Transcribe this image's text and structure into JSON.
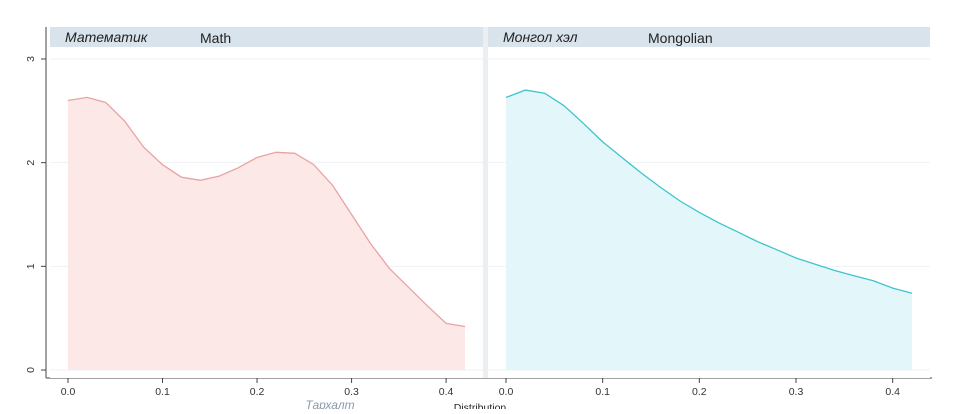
{
  "chart_data": {
    "type": "area",
    "ylim": [
      0,
      3
    ],
    "xlim": [
      0,
      0.42
    ],
    "yticks": [
      0,
      1,
      2,
      3
    ],
    "xticks": [
      0.0,
      0.1,
      0.2,
      0.3,
      0.4
    ],
    "xtick_labels": [
      "0.0",
      "0.1",
      "0.2",
      "0.3",
      "0.4"
    ],
    "ytick_labels": [
      "0",
      "1",
      "2",
      "3"
    ],
    "xlabel_mn": "Тархалт",
    "xlabel_en": "Distribution",
    "grid": true,
    "panels": [
      {
        "name_mn": "Математик",
        "name_en": "Math",
        "color": "#e8a3a3",
        "fill": "#fde8e8",
        "x": [
          0.0,
          0.02,
          0.04,
          0.06,
          0.08,
          0.1,
          0.12,
          0.14,
          0.16,
          0.18,
          0.2,
          0.22,
          0.24,
          0.26,
          0.28,
          0.3,
          0.32,
          0.34,
          0.36,
          0.38,
          0.4,
          0.42
        ],
        "y": [
          2.6,
          2.63,
          2.58,
          2.4,
          2.15,
          1.98,
          1.86,
          1.83,
          1.87,
          1.95,
          2.05,
          2.1,
          2.09,
          1.98,
          1.78,
          1.5,
          1.22,
          0.98,
          0.8,
          0.62,
          0.45,
          0.42
        ]
      },
      {
        "name_mn": "Монгол хэл",
        "name_en": "Mongolian",
        "color": "#3fc4cc",
        "fill": "#e3f7fa",
        "x": [
          0.0,
          0.02,
          0.04,
          0.06,
          0.08,
          0.1,
          0.12,
          0.14,
          0.16,
          0.18,
          0.2,
          0.22,
          0.24,
          0.26,
          0.28,
          0.3,
          0.32,
          0.34,
          0.36,
          0.38,
          0.4,
          0.42
        ],
        "y": [
          2.63,
          2.7,
          2.67,
          2.55,
          2.38,
          2.2,
          2.05,
          1.9,
          1.76,
          1.63,
          1.52,
          1.42,
          1.33,
          1.24,
          1.16,
          1.08,
          1.02,
          0.96,
          0.91,
          0.86,
          0.79,
          0.74
        ]
      }
    ]
  }
}
